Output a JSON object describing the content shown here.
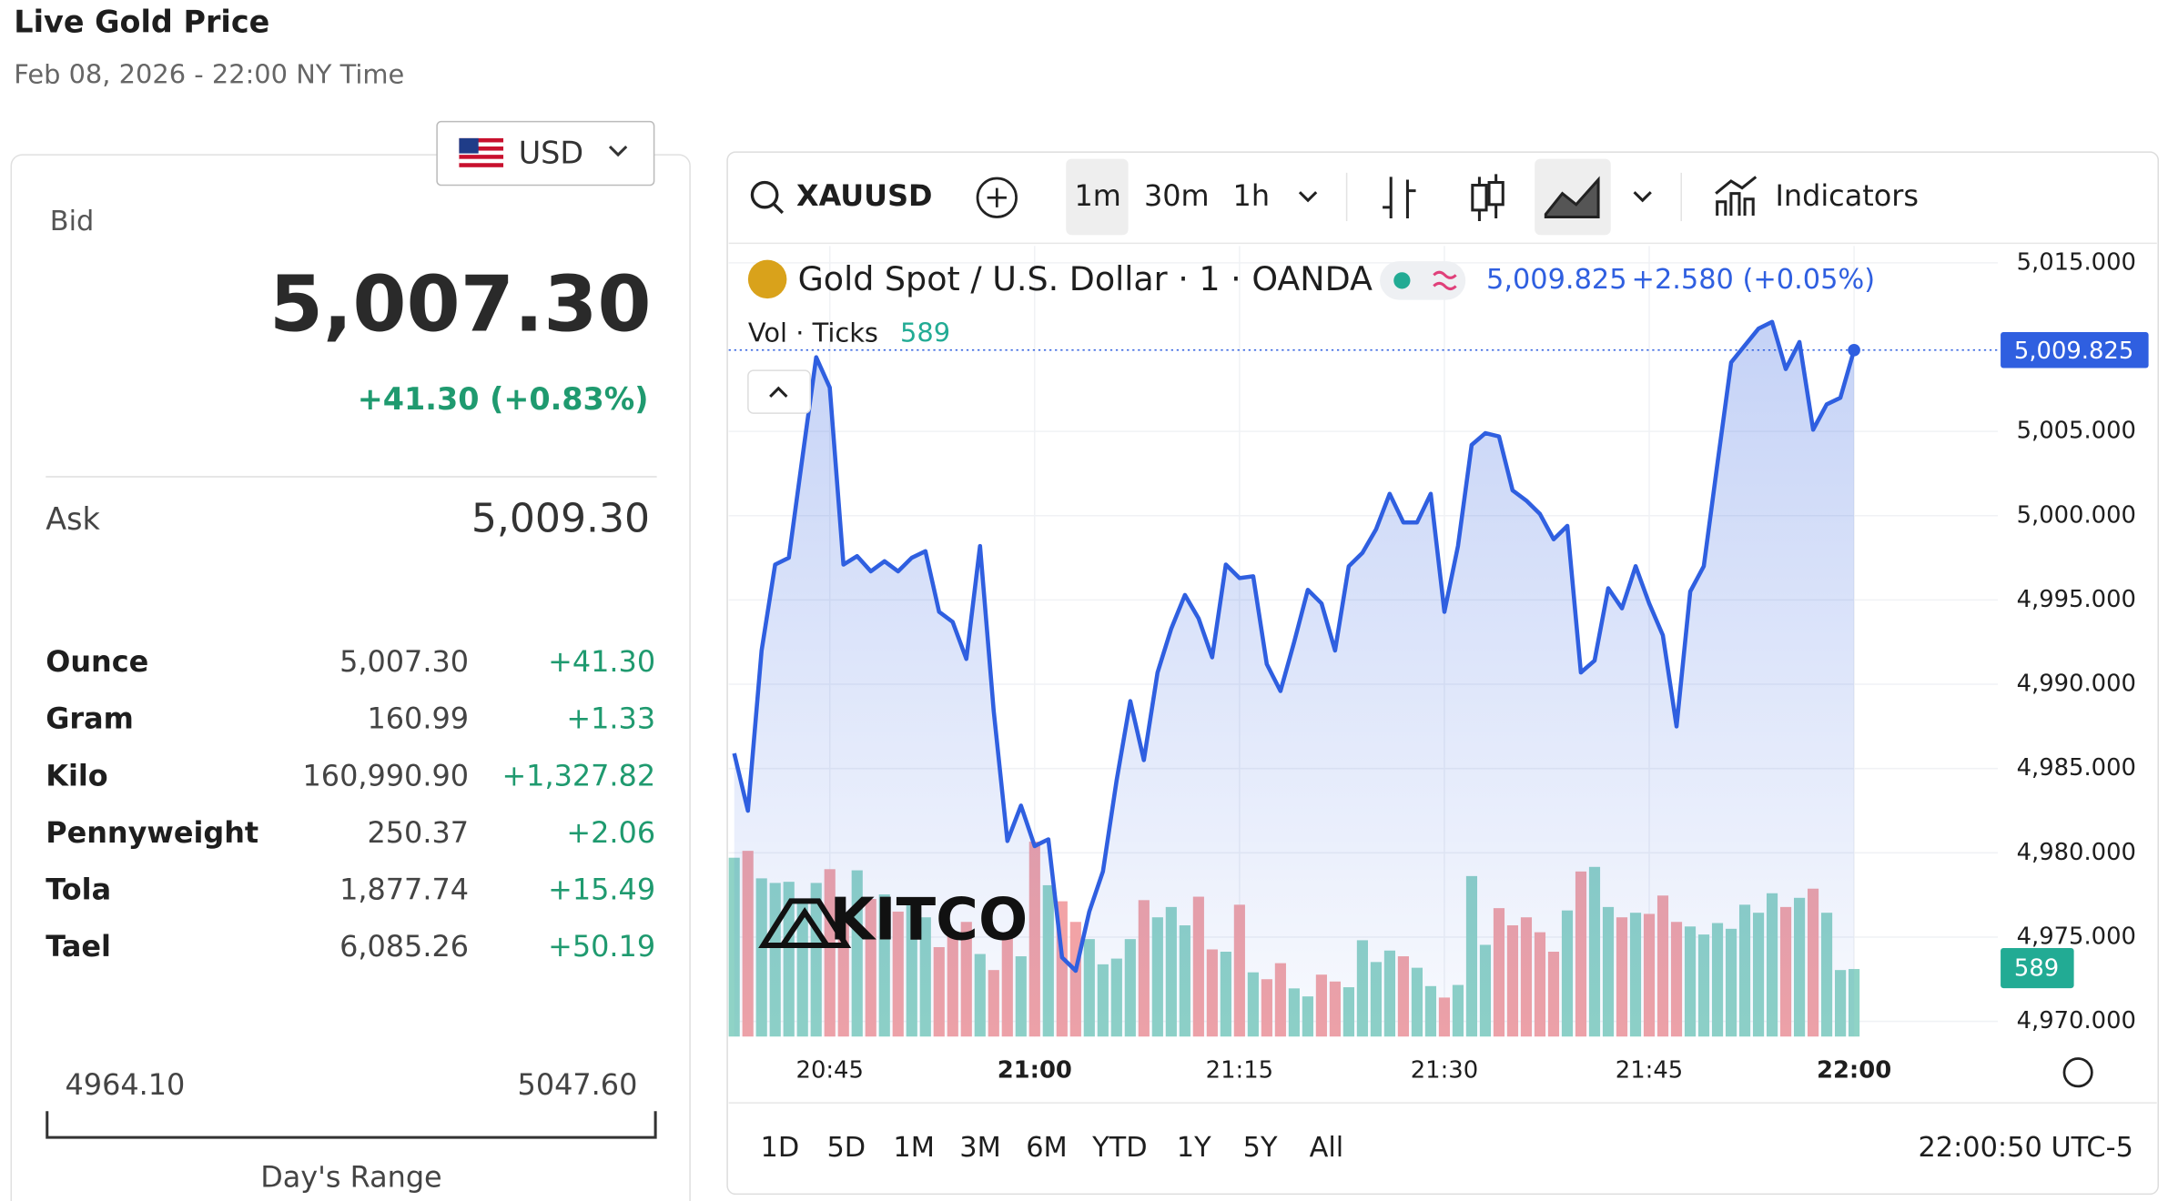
{
  "header": {
    "title": "Live Gold Price",
    "date": "Feb 08, 2026 - 22:00 NY Time"
  },
  "currency": "USD",
  "bid": {
    "label": "Bid",
    "value": "5,007.30",
    "change": "+41.30 (+0.83%)"
  },
  "ask": {
    "label": "Ask",
    "value": "5,009.30"
  },
  "table": {
    "rows": [
      [
        "Ounce",
        "5,007.30",
        "+41.30"
      ],
      [
        "Gram",
        "160.99",
        "+1.33"
      ],
      [
        "Kilo",
        "160,990.90",
        "+1,327.82"
      ],
      [
        "Pennyweight",
        "250.37",
        "+2.06"
      ],
      [
        "Tola",
        "1,877.74",
        "+15.49"
      ],
      [
        "Tael",
        "6,085.26",
        "+50.19"
      ]
    ]
  },
  "range": {
    "low": "4964.10",
    "high": "5047.60",
    "label": "Day's Range"
  },
  "toolbar": {
    "symbol": "XAUUSD",
    "intervals": [
      "1m",
      "30m",
      "1h"
    ],
    "indicators": "Indicators"
  },
  "watermark": "KITCO",
  "chart_data": {
    "type": "line",
    "title": "Gold Spot / U.S. Dollar · 1 · OANDA",
    "price_label": "5,009.825",
    "change_label": "+2.580 (+0.05%)",
    "volume_title": "Vol · Ticks",
    "volume_label": "589",
    "color": "#2f5fe0",
    "up_color": "#8fd3c6",
    "down_color": "#f2a3a6",
    "x": [
      "20:38",
      "20:39",
      "20:40",
      "20:41",
      "20:42",
      "20:43",
      "20:44",
      "20:45",
      "20:46",
      "20:47",
      "20:48",
      "20:49",
      "20:50",
      "20:51",
      "20:52",
      "20:53",
      "20:54",
      "20:55",
      "20:56",
      "20:57",
      "20:58",
      "20:59",
      "21:00",
      "21:01",
      "21:02",
      "21:03",
      "21:04",
      "21:05",
      "21:06",
      "21:07",
      "21:08",
      "21:09",
      "21:10",
      "21:11",
      "21:12",
      "21:13",
      "21:14",
      "21:15",
      "21:16",
      "21:17",
      "21:18",
      "21:19",
      "21:20",
      "21:21",
      "21:22",
      "21:23",
      "21:24",
      "21:25",
      "21:26",
      "21:27",
      "21:28",
      "21:29",
      "21:30",
      "21:31",
      "21:32",
      "21:33",
      "21:34",
      "21:35",
      "21:36",
      "21:37",
      "21:38",
      "21:39",
      "21:40",
      "21:41",
      "21:42",
      "21:43",
      "21:44",
      "21:45",
      "21:46",
      "21:47",
      "21:48",
      "21:49",
      "21:50",
      "21:51",
      "21:52",
      "21:53",
      "21:54",
      "21:55",
      "21:56",
      "21:57",
      "21:58",
      "21:59",
      "22:00"
    ],
    "values": [
      4985.9,
      4982.5,
      4992.0,
      4997.1,
      4997.5,
      5003.5,
      5009.4,
      5007.6,
      4997.1,
      4997.6,
      4996.7,
      4997.3,
      4996.7,
      4997.5,
      4997.9,
      4994.3,
      4993.7,
      4991.5,
      4998.2,
      4988.4,
      4980.7,
      4982.8,
      4980.4,
      4980.8,
      4973.8,
      4973.0,
      4976.5,
      4978.9,
      4984.3,
      4989.0,
      4985.5,
      4990.7,
      4993.3,
      4995.3,
      4993.9,
      4991.6,
      4997.1,
      4996.3,
      4996.4,
      4991.2,
      4989.6,
      4992.5,
      4995.6,
      4994.8,
      4992.0,
      4997.0,
      4997.8,
      4999.2,
      5001.3,
      4999.6,
      4999.6,
      5001.3,
      4994.3,
      4998.2,
      5004.2,
      5004.9,
      5004.7,
      5001.5,
      5000.9,
      5000.1,
      4998.6,
      4999.4,
      4990.7,
      4991.4,
      4995.7,
      4994.5,
      4997.0,
      4994.8,
      4992.9,
      4987.5,
      4995.5,
      4997.0,
      5003.1,
      5009.1,
      5010.1,
      5011.1,
      5011.5,
      5008.7,
      5010.3,
      5005.1,
      5006.6,
      5007.0,
      5009.825
    ],
    "volume": [
      1560,
      1620,
      1380,
      1340,
      1350,
      1200,
      1340,
      1460,
      1000,
      1450,
      1200,
      1240,
      1090,
      1190,
      1040,
      780,
      880,
      1000,
      720,
      580,
      860,
      700,
      1700,
      1320,
      1180,
      1000,
      850,
      630,
      680,
      850,
      1190,
      1040,
      1130,
      970,
      1220,
      760,
      740,
      1150,
      560,
      500,
      640,
      420,
      350,
      540,
      480,
      430,
      840,
      650,
      750,
      700,
      600,
      440,
      340,
      450,
      1400,
      800,
      1120,
      970,
      1040,
      910,
      740,
      1100,
      1440,
      1480,
      1130,
      1040,
      1080,
      1070,
      1230,
      1000,
      960,
      890,
      990,
      940,
      1150,
      1080,
      1250,
      1130,
      1210,
      1290,
      1080,
      580,
      589
    ],
    "ylim": [
      4969.1,
      5016.0
    ],
    "yticks": [
      {
        "value": 5015,
        "label": "5,015.000"
      },
      {
        "value": 5005,
        "label": "5,005.000"
      },
      {
        "value": 5000,
        "label": "5,000.000"
      },
      {
        "value": 4995,
        "label": "4,995.000"
      },
      {
        "value": 4990,
        "label": "4,990.000"
      },
      {
        "value": 4985,
        "label": "4,985.000"
      },
      {
        "value": 4980,
        "label": "4,980.000"
      },
      {
        "value": 4975,
        "label": "4,975.000"
      },
      {
        "value": 4970,
        "label": "4,970.000"
      }
    ],
    "xticks": [
      "20:45",
      "21:00",
      "21:15",
      "21:30",
      "21:45",
      "22:00"
    ],
    "grid": true
  },
  "ranges": [
    "1D",
    "5D",
    "1M",
    "3M",
    "6M",
    "YTD",
    "1Y",
    "5Y",
    "All"
  ],
  "clock": "22:00:50 UTC-5"
}
